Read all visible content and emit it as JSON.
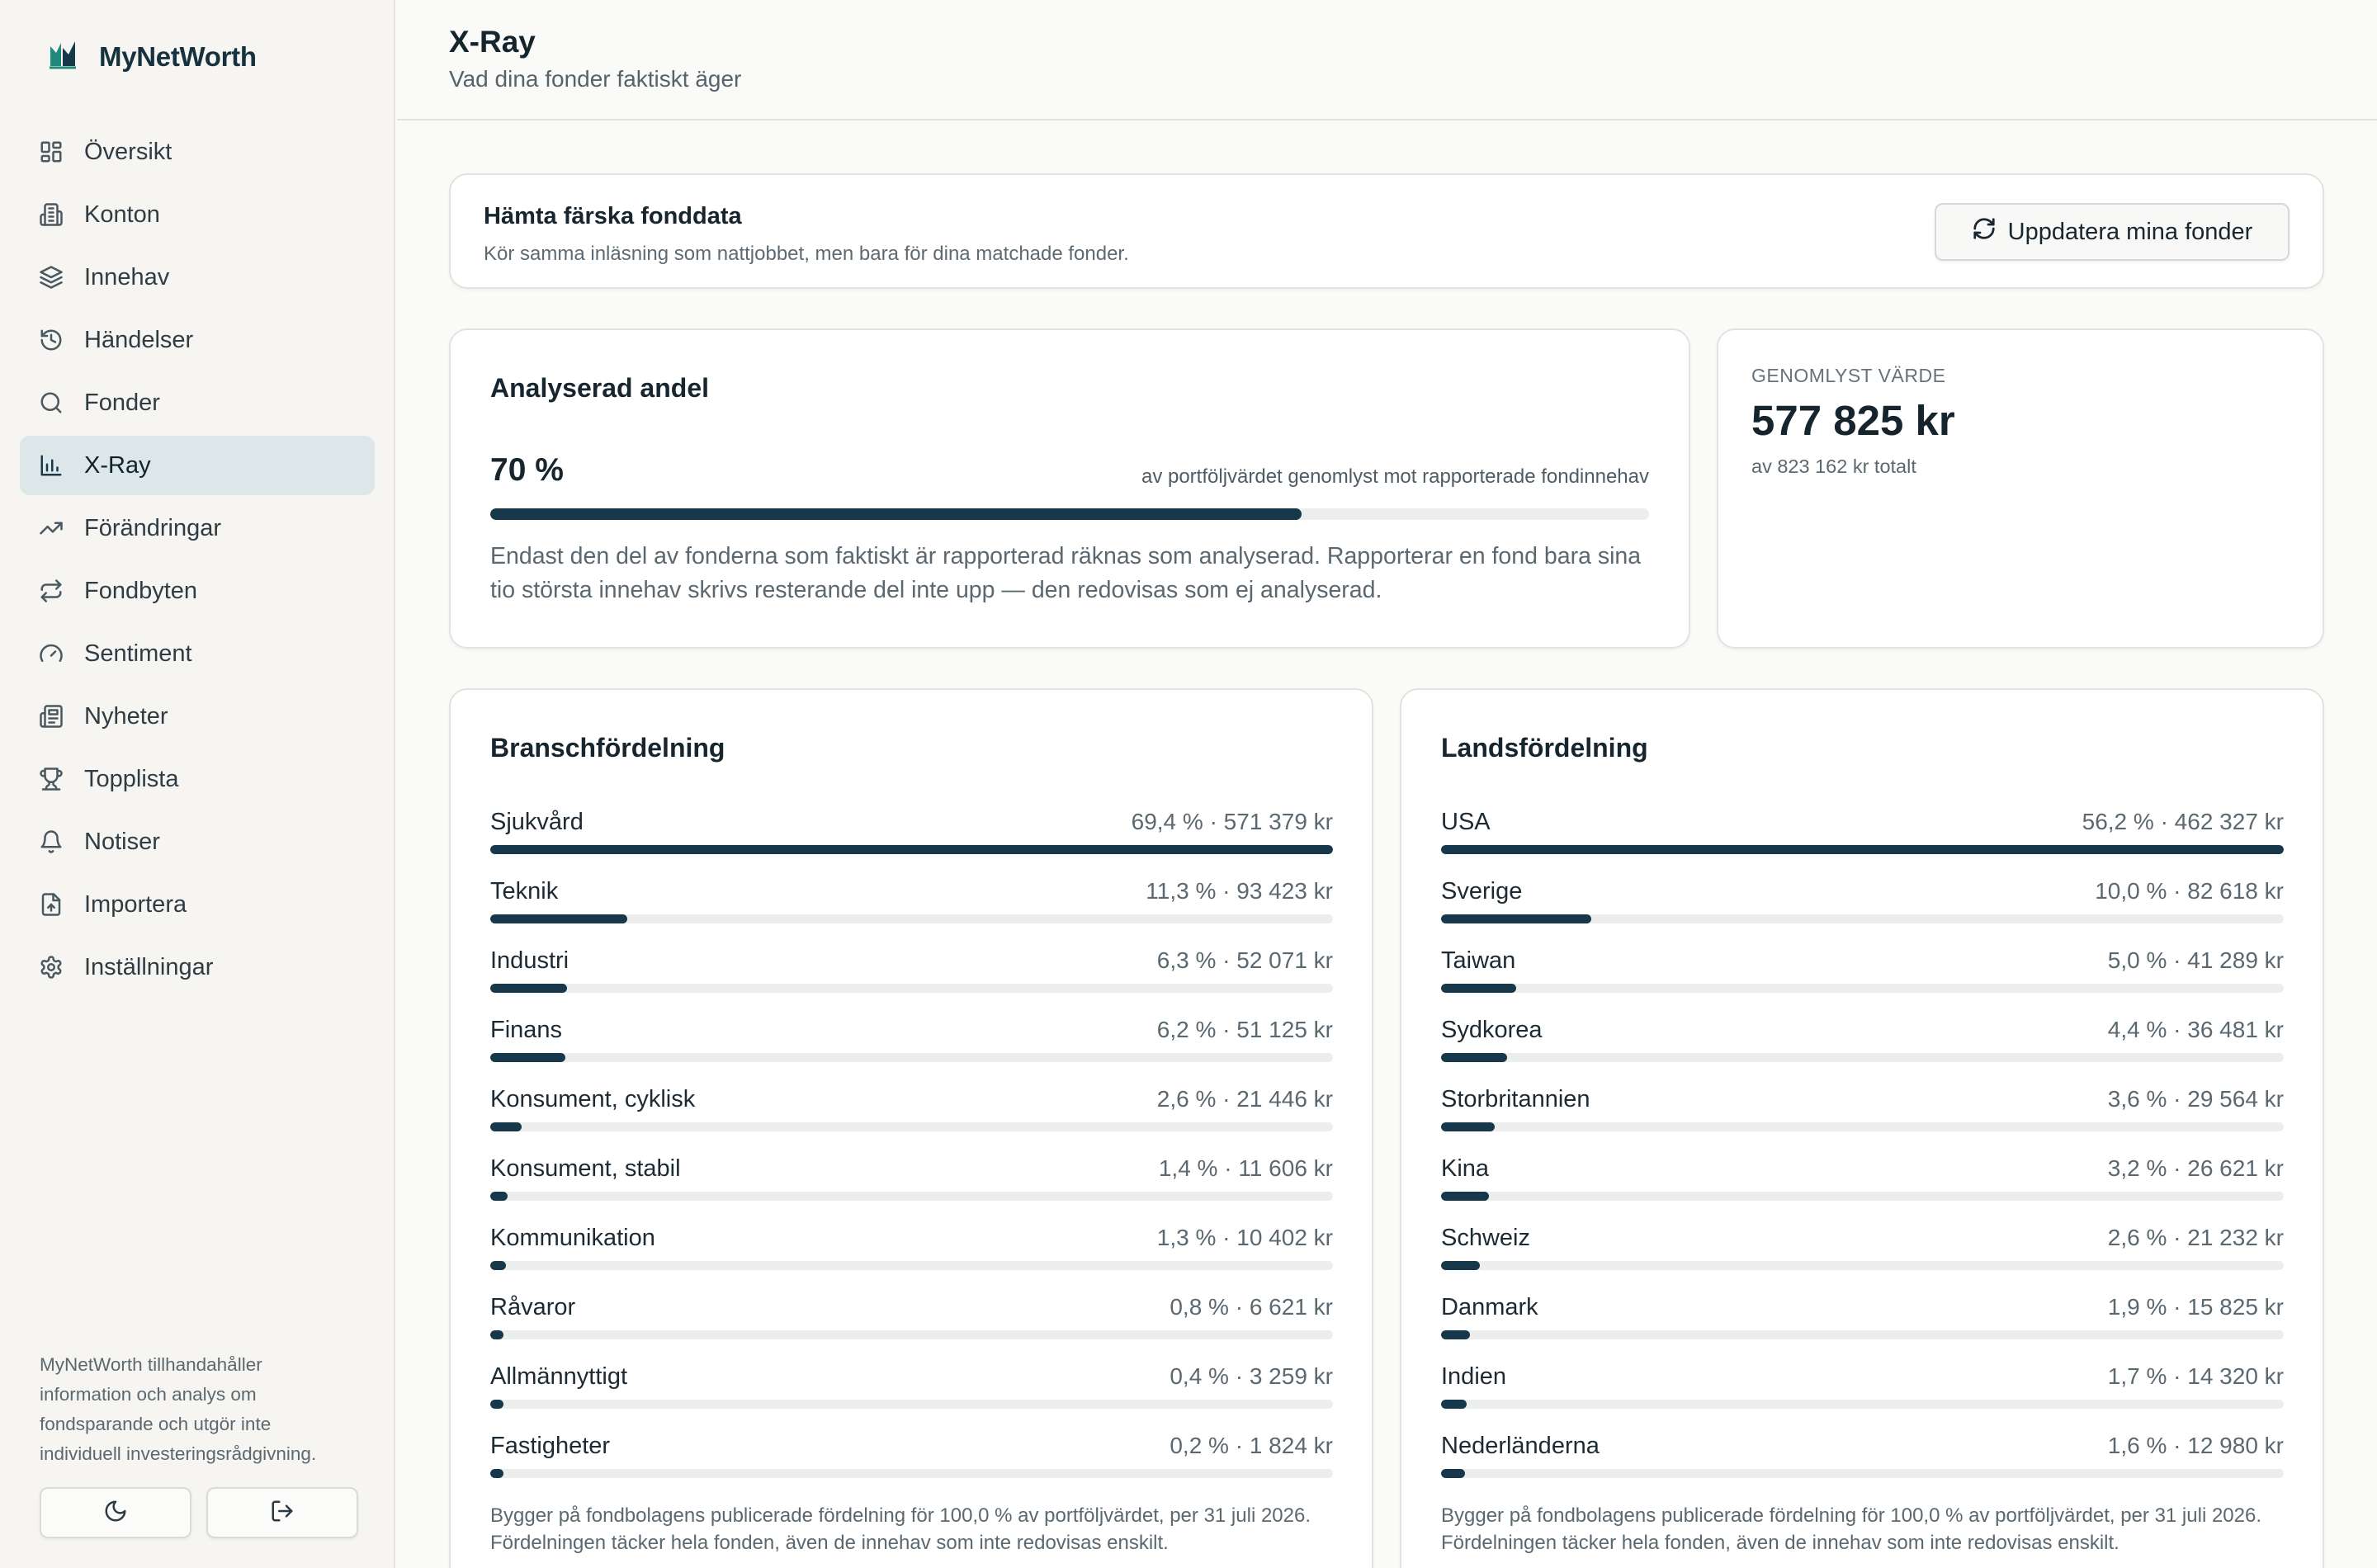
{
  "app": {
    "name": "MyNetWorth"
  },
  "sidebar": {
    "items": [
      {
        "label": "Översikt",
        "icon": "dashboard-icon",
        "active": false
      },
      {
        "label": "Konton",
        "icon": "bank-icon",
        "active": false
      },
      {
        "label": "Innehav",
        "icon": "layers-icon",
        "active": false
      },
      {
        "label": "Händelser",
        "icon": "history-icon",
        "active": false
      },
      {
        "label": "Fonder",
        "icon": "search-icon",
        "active": false
      },
      {
        "label": "X-Ray",
        "icon": "bar-chart-icon",
        "active": true
      },
      {
        "label": "Förändringar",
        "icon": "trending-up-icon",
        "active": false
      },
      {
        "label": "Fondbyten",
        "icon": "swap-icon",
        "active": false
      },
      {
        "label": "Sentiment",
        "icon": "gauge-icon",
        "active": false
      },
      {
        "label": "Nyheter",
        "icon": "newspaper-icon",
        "active": false
      },
      {
        "label": "Topplista",
        "icon": "trophy-icon",
        "active": false
      },
      {
        "label": "Notiser",
        "icon": "bell-icon",
        "active": false
      },
      {
        "label": "Importera",
        "icon": "file-import-icon",
        "active": false
      },
      {
        "label": "Inställningar",
        "icon": "gear-icon",
        "active": false
      }
    ],
    "disclaimer": "MyNetWorth tillhandahåller information och analys om fondsparande och utgör inte individuell investeringsrådgivning.",
    "buttons": {
      "theme_icon": "moon-icon",
      "logout_icon": "logout-icon"
    }
  },
  "header": {
    "title": "X-Ray",
    "subtitle": "Vad dina fonder faktiskt äger"
  },
  "refresh": {
    "title": "Hämta färska fonddata",
    "description": "Kör samma inläsning som nattjobbet, men bara för dina matchade fonder.",
    "button_label": "Uppdatera mina fonder"
  },
  "analysis": {
    "heading": "Analyserad andel",
    "percent_label": "70 %",
    "percent_value": 70,
    "caption": "av portföljvärdet genomlyst mot rapporterade fondinnehav",
    "text": "Endast den del av fonderna som faktiskt är rapporterad räknas som analyserad. Rapporterar en fond bara sina tio största innehav skrivs resterande del inte upp — den redovisas som ej analyserad."
  },
  "value": {
    "label": "Genomlyst värde",
    "amount": "577 825 kr",
    "sub": "av 823 162 kr totalt"
  },
  "sectors": {
    "heading": "Branschfördelning",
    "rows": [
      {
        "name": "Sjukvård",
        "value": "69,4 % · 571 379 kr",
        "pct": 69.4
      },
      {
        "name": "Teknik",
        "value": "11,3 % · 93 423 kr",
        "pct": 11.3
      },
      {
        "name": "Industri",
        "value": "6,3 % · 52 071 kr",
        "pct": 6.3
      },
      {
        "name": "Finans",
        "value": "6,2 % · 51 125 kr",
        "pct": 6.2
      },
      {
        "name": "Konsument, cyklisk",
        "value": "2,6 % · 21 446 kr",
        "pct": 2.6
      },
      {
        "name": "Konsument, stabil",
        "value": "1,4 % · 11 606 kr",
        "pct": 1.4
      },
      {
        "name": "Kommunikation",
        "value": "1,3 % · 10 402 kr",
        "pct": 1.3
      },
      {
        "name": "Råvaror",
        "value": "0,8 % · 6 621 kr",
        "pct": 0.8
      },
      {
        "name": "Allmännyttigt",
        "value": "0,4 % · 3 259 kr",
        "pct": 0.4
      },
      {
        "name": "Fastigheter",
        "value": "0,2 % · 1 824 kr",
        "pct": 0.2
      }
    ],
    "note": "Bygger på fondbolagens publicerade fördelning för 100,0 % av portföljvärdet, per 31 juli 2026. Fördelningen täcker hela fonden, även de innehav som inte redovisas enskilt."
  },
  "countries": {
    "heading": "Landsfördelning",
    "rows": [
      {
        "name": "USA",
        "value": "56,2 % · 462 327 kr",
        "pct": 56.2
      },
      {
        "name": "Sverige",
        "value": "10,0 % · 82 618 kr",
        "pct": 10.0
      },
      {
        "name": "Taiwan",
        "value": "5,0 % · 41 289 kr",
        "pct": 5.0
      },
      {
        "name": "Sydkorea",
        "value": "4,4 % · 36 481 kr",
        "pct": 4.4
      },
      {
        "name": "Storbritannien",
        "value": "3,6 % · 29 564 kr",
        "pct": 3.6
      },
      {
        "name": "Kina",
        "value": "3,2 % · 26 621 kr",
        "pct": 3.2
      },
      {
        "name": "Schweiz",
        "value": "2,6 % · 21 232 kr",
        "pct": 2.6
      },
      {
        "name": "Danmark",
        "value": "1,9 % · 15 825 kr",
        "pct": 1.9
      },
      {
        "name": "Indien",
        "value": "1,7 % · 14 320 kr",
        "pct": 1.7
      },
      {
        "name": "Nederländerna",
        "value": "1,6 % · 12 980 kr",
        "pct": 1.6
      }
    ],
    "note": "Bygger på fondbolagens publicerade fördelning för 100,0 % av portföljvärdet, per 31 juli 2026. Fördelningen täcker hela fonden, även de innehav som inte redovisas enskilt."
  },
  "colors": {
    "accent": "#17384a",
    "active_nav_bg": "#dde7ea",
    "track": "#eceeee",
    "logo": "#1f8a7a"
  }
}
